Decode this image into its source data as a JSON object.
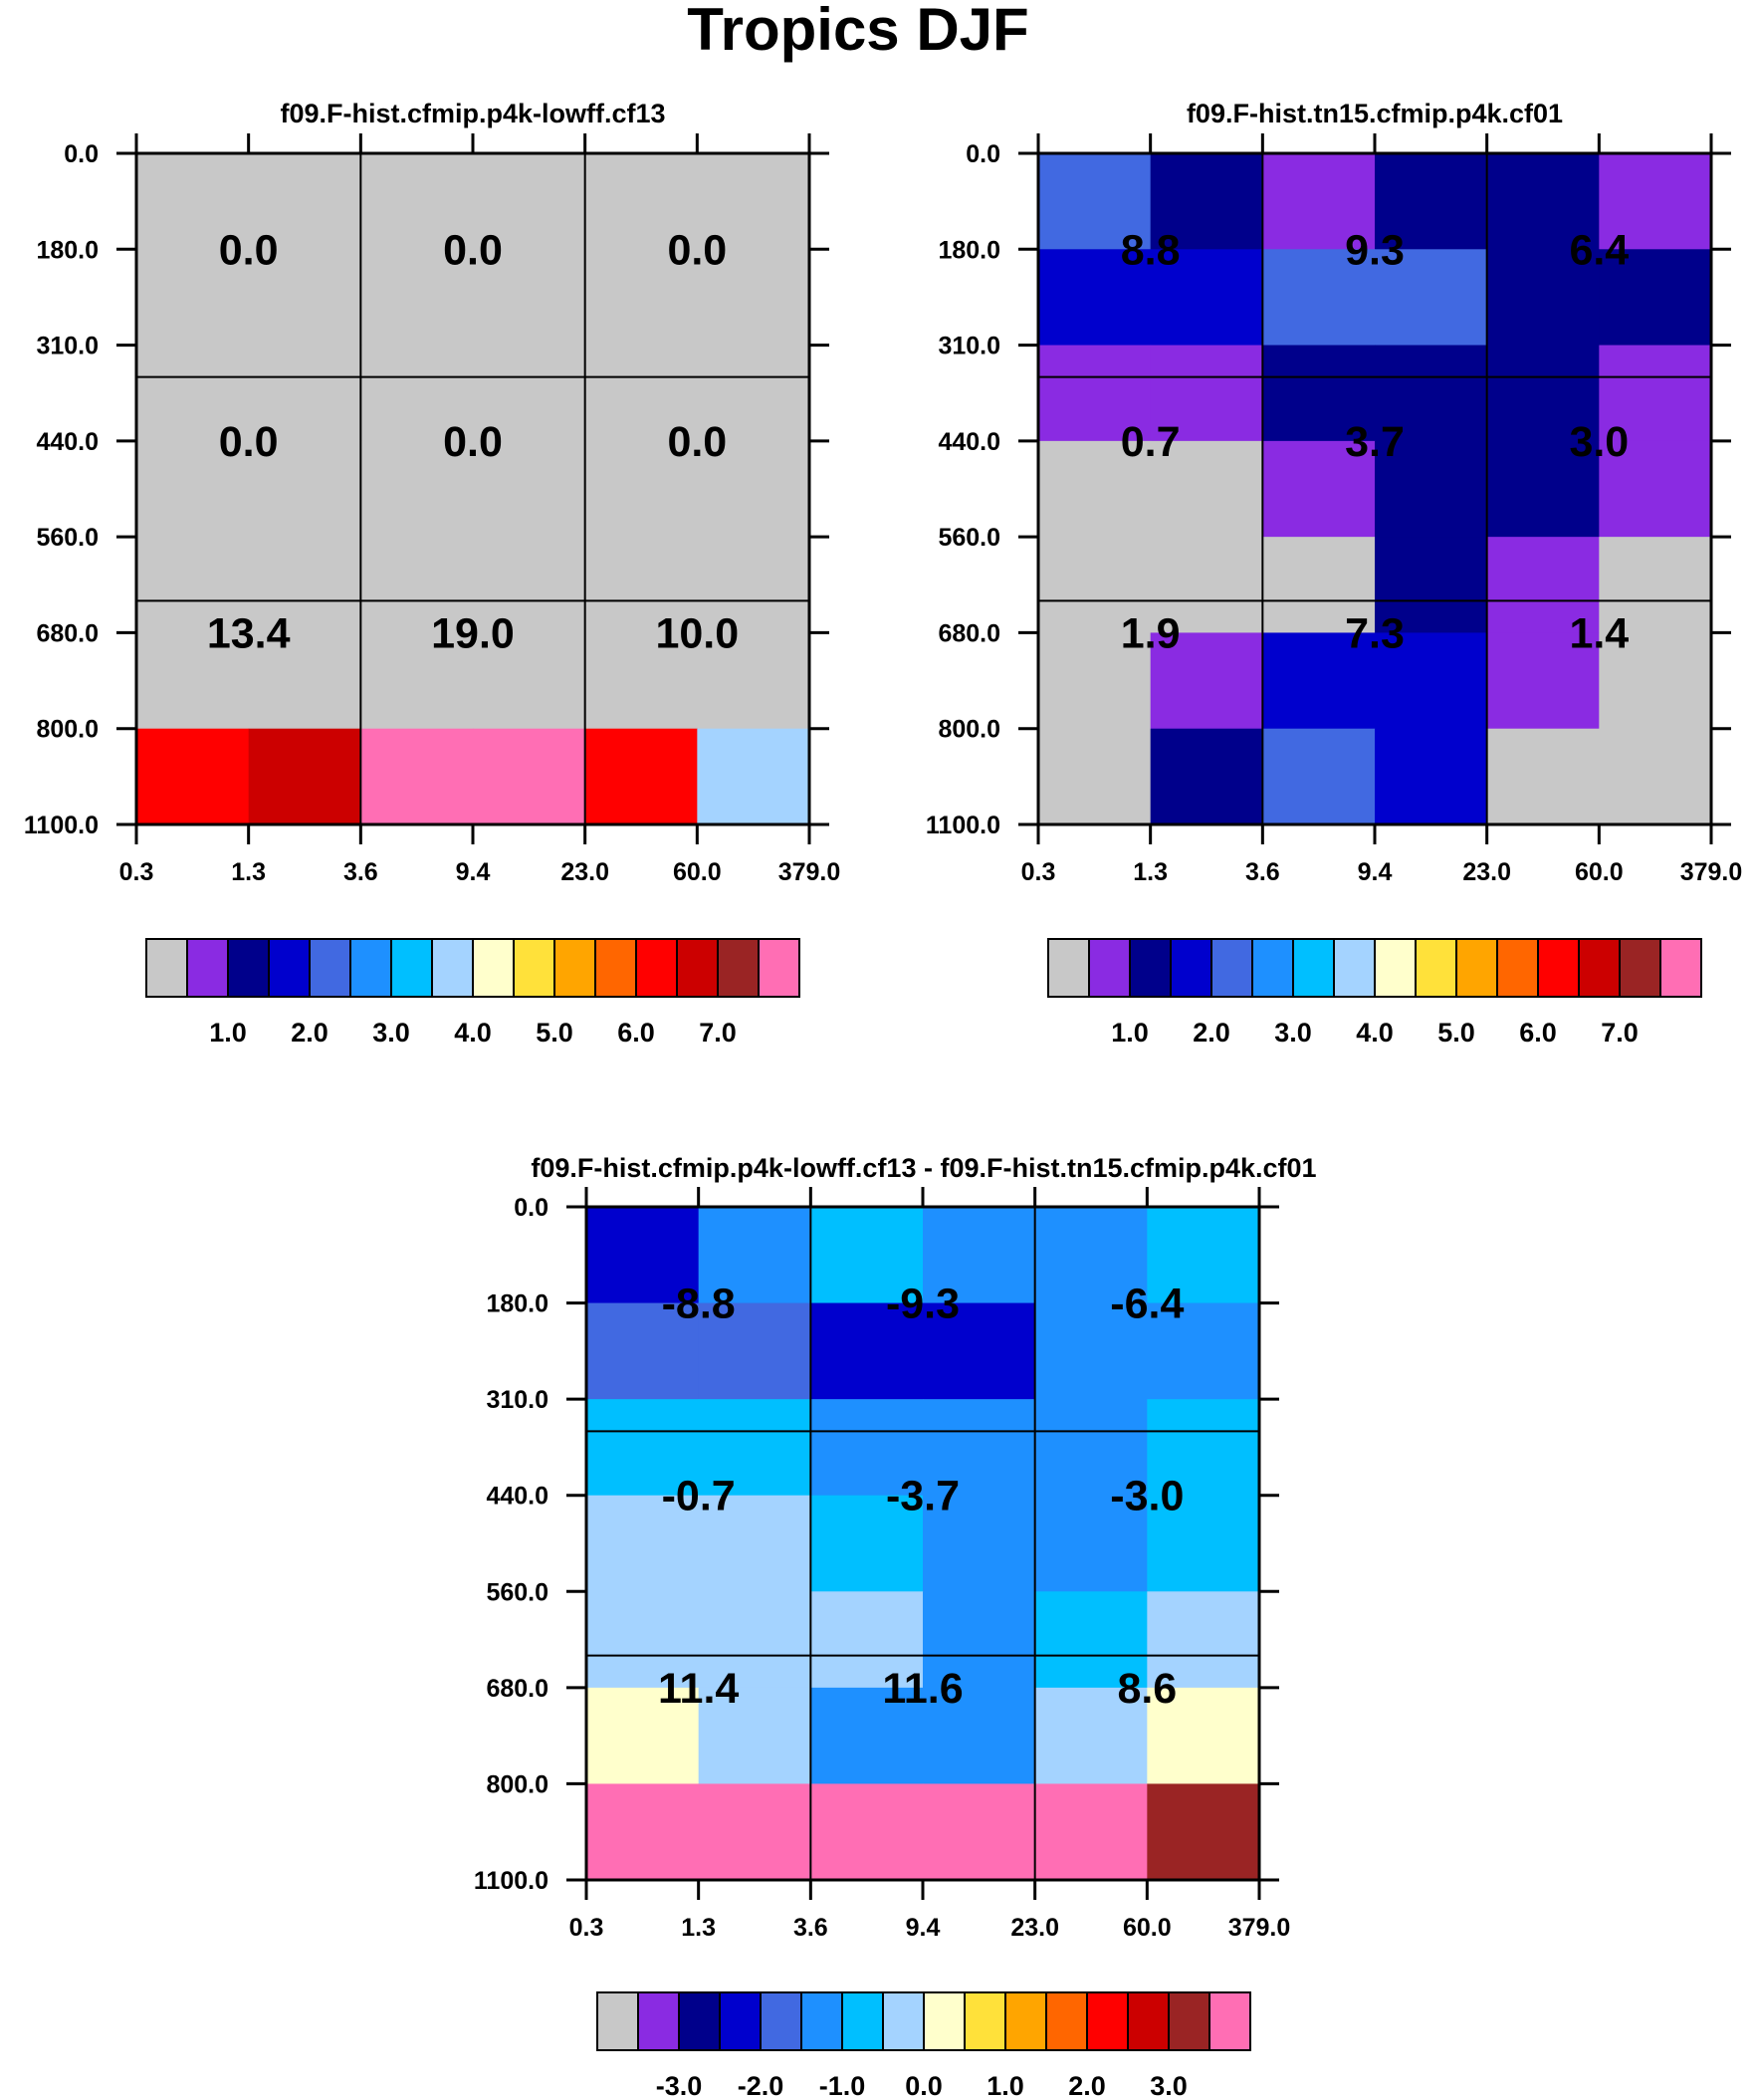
{
  "figure_title": "Tropics DJF",
  "chart_data": [
    {
      "type": "heatmap",
      "title": "f09.F-hist.cfmip.p4k-lowff.cf13",
      "x_tick_labels": [
        "0.3",
        "1.3",
        "3.6",
        "9.4",
        "23.0",
        "60.0",
        "379.0"
      ],
      "y_tick_labels": [
        "0.0",
        "180.0",
        "310.0",
        "440.0",
        "560.0",
        "680.0",
        "800.0",
        "1100.0"
      ],
      "group_values": [
        [
          "0.0",
          "0.0",
          "0.0"
        ],
        [
          "0.0",
          "0.0",
          "0.0"
        ],
        [
          "13.4",
          "19.0",
          "10.0"
        ]
      ],
      "cell_color_index": [
        [
          0,
          0,
          0,
          0,
          0,
          0
        ],
        [
          0,
          0,
          0,
          0,
          0,
          0
        ],
        [
          0,
          0,
          0,
          0,
          0,
          0
        ],
        [
          0,
          0,
          0,
          0,
          0,
          0
        ],
        [
          0,
          0,
          0,
          0,
          0,
          0
        ],
        [
          0,
          0,
          0,
          0,
          0,
          0
        ],
        [
          12,
          13,
          15,
          15,
          12,
          7
        ]
      ],
      "colorbar": {
        "colors": [
          "#c8c8c8",
          "#8a2be2",
          "#00008b",
          "#0000cd",
          "#4169e1",
          "#1e90ff",
          "#00bfff",
          "#a4d3ff",
          "#ffffcc",
          "#ffe13a",
          "#ffa500",
          "#ff6600",
          "#ff0000",
          "#cc0000",
          "#9a2424",
          "#ff6eb4"
        ],
        "labels": [
          "1.0",
          "2.0",
          "3.0",
          "4.0",
          "5.0",
          "6.0",
          "7.0"
        ]
      }
    },
    {
      "type": "heatmap",
      "title": "f09.F-hist.tn15.cfmip.p4k.cf01",
      "x_tick_labels": [
        "0.3",
        "1.3",
        "3.6",
        "9.4",
        "23.0",
        "60.0",
        "379.0"
      ],
      "y_tick_labels": [
        "0.0",
        "180.0",
        "310.0",
        "440.0",
        "560.0",
        "680.0",
        "800.0",
        "1100.0"
      ],
      "group_values": [
        [
          "8.8",
          "9.3",
          "6.4"
        ],
        [
          "0.7",
          "3.7",
          "3.0"
        ],
        [
          "1.9",
          "7.3",
          "1.4"
        ]
      ],
      "cell_color_index": [
        [
          4,
          2,
          1,
          2,
          2,
          1
        ],
        [
          3,
          3,
          4,
          4,
          2,
          2
        ],
        [
          1,
          1,
          2,
          2,
          2,
          1
        ],
        [
          0,
          0,
          1,
          2,
          2,
          1
        ],
        [
          0,
          0,
          0,
          2,
          1,
          0
        ],
        [
          0,
          1,
          3,
          3,
          1,
          0
        ],
        [
          0,
          2,
          4,
          3,
          0,
          0
        ]
      ],
      "colorbar": {
        "colors": [
          "#c8c8c8",
          "#8a2be2",
          "#00008b",
          "#0000cd",
          "#4169e1",
          "#1e90ff",
          "#00bfff",
          "#a4d3ff",
          "#ffffcc",
          "#ffe13a",
          "#ffa500",
          "#ff6600",
          "#ff0000",
          "#cc0000",
          "#9a2424",
          "#ff6eb4"
        ],
        "labels": [
          "1.0",
          "2.0",
          "3.0",
          "4.0",
          "5.0",
          "6.0",
          "7.0"
        ]
      }
    },
    {
      "type": "heatmap",
      "title": "f09.F-hist.cfmip.p4k-lowff.cf13 - f09.F-hist.tn15.cfmip.p4k.cf01",
      "x_tick_labels": [
        "0.3",
        "1.3",
        "3.6",
        "9.4",
        "23.0",
        "60.0",
        "379.0"
      ],
      "y_tick_labels": [
        "0.0",
        "180.0",
        "310.0",
        "440.0",
        "560.0",
        "680.0",
        "800.0",
        "1100.0"
      ],
      "group_values": [
        [
          "-8.8",
          "-9.3",
          "-6.4"
        ],
        [
          "-0.7",
          "-3.7",
          "-3.0"
        ],
        [
          "11.4",
          "11.6",
          "8.6"
        ]
      ],
      "cell_color_index": [
        [
          3,
          5,
          6,
          5,
          5,
          6
        ],
        [
          4,
          4,
          3,
          3,
          5,
          5
        ],
        [
          6,
          6,
          5,
          5,
          5,
          6
        ],
        [
          7,
          7,
          6,
          5,
          5,
          6
        ],
        [
          7,
          7,
          7,
          5,
          6,
          7
        ],
        [
          8,
          7,
          5,
          5,
          7,
          8
        ],
        [
          15,
          15,
          15,
          15,
          15,
          14
        ]
      ],
      "colorbar": {
        "colors": [
          "#c8c8c8",
          "#8a2be2",
          "#00008b",
          "#0000cd",
          "#4169e1",
          "#1e90ff",
          "#00bfff",
          "#a4d3ff",
          "#ffffcc",
          "#ffe13a",
          "#ffa500",
          "#ff6600",
          "#ff0000",
          "#cc0000",
          "#9a2424",
          "#ff6eb4"
        ],
        "labels": [
          "-3.0",
          "-2.0",
          "-1.0",
          "0.0",
          "1.0",
          "2.0",
          "3.0"
        ]
      }
    }
  ]
}
